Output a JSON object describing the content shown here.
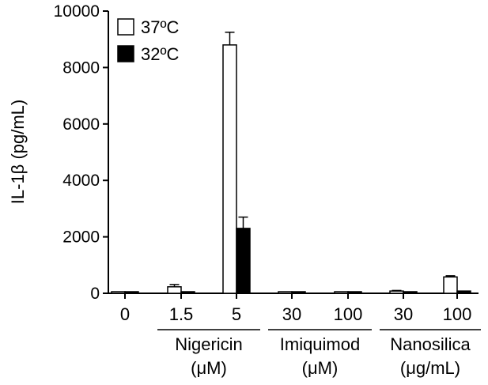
{
  "chart_data": {
    "type": "bar",
    "ylabel": "IL-1β (pg/mL)",
    "ylim": [
      0,
      10000
    ],
    "yticks": [
      "0",
      "2000",
      "4000",
      "6000",
      "8000",
      "10000"
    ],
    "categories": [
      "0",
      "1.5",
      "5",
      "30",
      "100",
      "30",
      "100"
    ],
    "groups": [
      {
        "label": "Nigericin",
        "unit": "(μM)",
        "categories": [
          1,
          2
        ]
      },
      {
        "label": "Imiquimod",
        "unit": "(μM)",
        "categories": [
          3,
          4
        ]
      },
      {
        "label": "Nanosilica",
        "unit": "(μg/mL)",
        "categories": [
          5,
          6
        ]
      }
    ],
    "series": [
      {
        "name": "37ºC",
        "fill": "#ffffff",
        "stroke": "#000000",
        "values": [
          30,
          230,
          8800,
          30,
          30,
          80,
          580
        ],
        "errors": [
          0,
          80,
          450,
          0,
          0,
          20,
          40
        ]
      },
      {
        "name": "32ºC",
        "fill": "#000000",
        "stroke": "#000000",
        "values": [
          20,
          20,
          2300,
          20,
          20,
          20,
          80
        ],
        "errors": [
          0,
          0,
          400,
          0,
          0,
          0,
          0
        ]
      }
    ],
    "grid": false,
    "legend": "top-left"
  }
}
